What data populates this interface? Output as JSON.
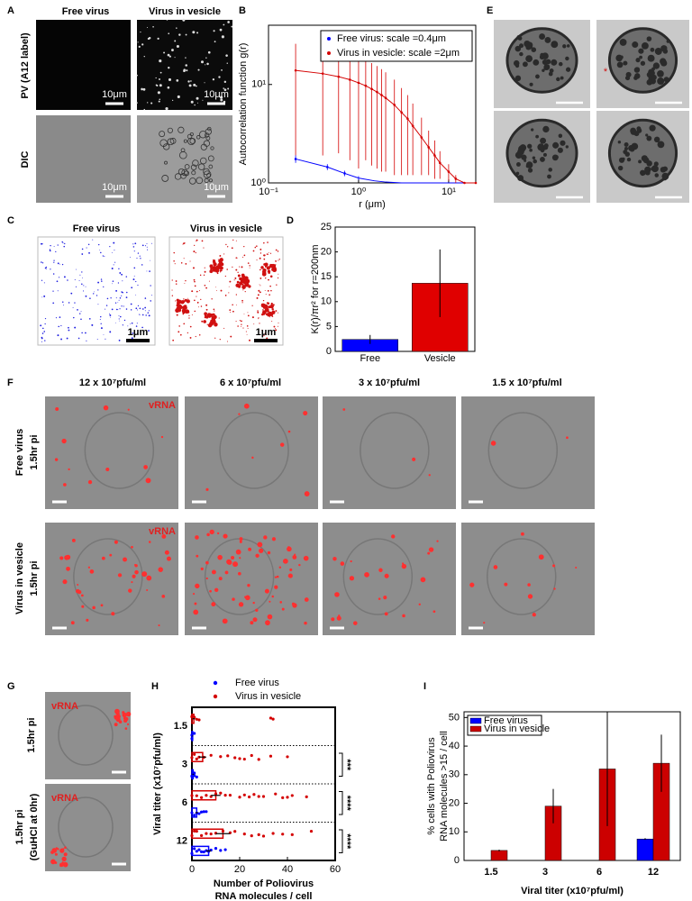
{
  "figure": {
    "panel_labels": [
      "A",
      "B",
      "C",
      "D",
      "E",
      "F",
      "G",
      "H",
      "I"
    ],
    "a": {
      "col_titles": [
        "Free virus",
        "Virus in vesicle"
      ],
      "row_titles": [
        "PV (A12 label)",
        "DIC"
      ],
      "scale_bars": [
        "10μm",
        "10μm",
        "10μm",
        "10μm"
      ]
    },
    "c": {
      "titles": [
        "Free virus",
        "Virus in vesicle"
      ],
      "scale_bars": [
        "1μm",
        "1μm"
      ]
    },
    "e": {
      "marker": "*"
    },
    "f": {
      "col_titles": [
        "12 x 10⁷pfu/ml",
        "6 x 10⁷pfu/ml",
        "3 x 10⁷pfu/ml",
        "1.5 x 10⁷pfu/ml"
      ],
      "row_titles": [
        [
          "Free virus",
          "1.5hr pi"
        ],
        [
          "Virus in  vesicle",
          "1.5hr pi"
        ]
      ],
      "channel": [
        "vRNA",
        "vRNA"
      ]
    },
    "g": {
      "row_titles": [
        [
          "1.5hr pi"
        ],
        [
          "1.5hr pi",
          "(GuHCl at 0hr)"
        ]
      ],
      "channel": [
        "vRNA",
        "vRNA"
      ]
    }
  },
  "chart_data": [
    {
      "type": "line",
      "x_label": "r (μm)",
      "y_label": "Autocorrelation function g(r)",
      "log_x": true,
      "log_y": true,
      "xlim": [
        0.1,
        20
      ],
      "ylim": [
        1,
        40
      ],
      "xticks": [
        {
          "value": 0.1,
          "label": "10⁻¹"
        },
        {
          "value": 1,
          "label": "10⁰"
        },
        {
          "value": 10,
          "label": "10¹"
        }
      ],
      "yticks": [
        {
          "value": 1,
          "label": "10⁰"
        },
        {
          "value": 10,
          "label": "10¹"
        }
      ],
      "legend": "upper right",
      "series": [
        {
          "name": "Free virus: scale =0.4μm",
          "color": "#0000ff",
          "x": [
            0.2,
            0.45,
            0.7,
            1,
            1.5,
            2,
            3,
            5,
            10,
            20
          ],
          "values": [
            1.75,
            1.45,
            1.25,
            1.12,
            1.05,
            1.02,
            1.0,
            1.0,
            1.0,
            1.0
          ],
          "errors": [
            0.15,
            0.1,
            0.08,
            0.05,
            0,
            0,
            0,
            0,
            0,
            0
          ]
        },
        {
          "name": "Virus in vesicle: scale =2μm",
          "color": "#d40000",
          "x": [
            0.2,
            0.4,
            0.6,
            0.8,
            1,
            1.2,
            1.4,
            1.6,
            1.8,
            2,
            2.5,
            3,
            3.5,
            4,
            5,
            6,
            7,
            8,
            10,
            12,
            15,
            20
          ],
          "values": [
            13.9,
            12.9,
            12.0,
            11.2,
            10.4,
            9.7,
            9.0,
            8.4,
            7.8,
            7.3,
            6.2,
            5.2,
            4.5,
            3.8,
            2.9,
            2.3,
            1.9,
            1.6,
            1.3,
            1.1,
            1.0,
            1.0
          ],
          "errors": [
            12,
            11,
            10,
            9.5,
            9,
            8,
            7.5,
            7,
            6.5,
            6,
            5,
            4,
            3.3,
            2.6,
            1.7,
            1.1,
            0.8,
            0.5,
            0.25,
            0.1,
            0,
            0
          ]
        }
      ]
    },
    {
      "type": "bar",
      "y_label": "K(r)/πr² for r=200nm",
      "categories": [
        "Free",
        "Vesicle"
      ],
      "values": [
        2.4,
        13.7
      ],
      "errors": [
        0.9,
        6.8
      ],
      "colors": [
        "#0000ff",
        "#e00000"
      ],
      "ylim": [
        0,
        25
      ],
      "yticks": [
        0,
        5,
        10,
        15,
        20,
        25
      ]
    },
    {
      "type": "dotplot",
      "x_label": [
        "Number of Poliovirus",
        "RNA molecules / cell"
      ],
      "y_label": "Viral titer (x10⁷pfu/ml)",
      "categories": [
        "1.5",
        "3",
        "6",
        "12"
      ],
      "xlim": [
        0,
        60
      ],
      "xticks": [
        0,
        20,
        40,
        60
      ],
      "legend": "top",
      "significance": [
        null,
        "***",
        "****",
        "****"
      ],
      "series": [
        {
          "name": "Free virus",
          "color": "#0000ff",
          "values": [
            0.3,
            0.5,
            2,
            7
          ],
          "errors": [
            0.2,
            0.3,
            0.5,
            1
          ],
          "points": [
            [
              0,
              0,
              0,
              1
            ],
            [
              0,
              0,
              1,
              1,
              2
            ],
            [
              0,
              1,
              2,
              3,
              4,
              5,
              6
            ],
            [
              0,
              1,
              2,
              3,
              4,
              5,
              6,
              7,
              8,
              10,
              12,
              14
            ]
          ]
        },
        {
          "name": "Virus in vesicle",
          "color": "#d40000",
          "values": [
            0.8,
            4.5,
            10,
            13
          ],
          "errors": [
            0.5,
            1.5,
            2,
            3
          ],
          "points": [
            [
              0,
              0,
              1,
              2,
              3,
              33,
              34
            ],
            [
              0,
              1,
              2,
              3,
              5,
              8,
              12,
              15,
              18,
              20,
              22,
              25,
              28,
              33,
              40
            ],
            [
              0,
              2,
              4,
              6,
              8,
              10,
              12,
              14,
              16,
              20,
              22,
              24,
              26,
              28,
              30,
              35,
              38,
              40,
              42,
              48
            ],
            [
              0,
              1,
              2,
              4,
              6,
              8,
              10,
              13,
              16,
              18,
              22,
              25,
              28,
              30,
              34,
              38,
              42,
              50
            ]
          ]
        }
      ]
    },
    {
      "type": "grouped_bar",
      "x_label": "Viral titer (x10⁷pfu/ml)",
      "y_label": [
        "% cells with Poliovirus",
        "RNA molecules >15 / cell"
      ],
      "categories": [
        "1.5",
        "3",
        "6",
        "12"
      ],
      "ylim": [
        0,
        52
      ],
      "yticks": [
        0,
        10,
        20,
        30,
        40,
        50
      ],
      "legend": "upper left",
      "series": [
        {
          "name": "Free virus",
          "color": "#0000ff",
          "values": [
            0,
            0,
            0,
            7.5
          ],
          "errors": [
            0,
            0,
            0,
            0.3
          ]
        },
        {
          "name": "Virus in vesicle",
          "color": "#cc0000",
          "values": [
            3.5,
            19,
            32,
            34
          ],
          "errors": [
            0.3,
            6,
            20,
            10
          ]
        }
      ]
    }
  ]
}
